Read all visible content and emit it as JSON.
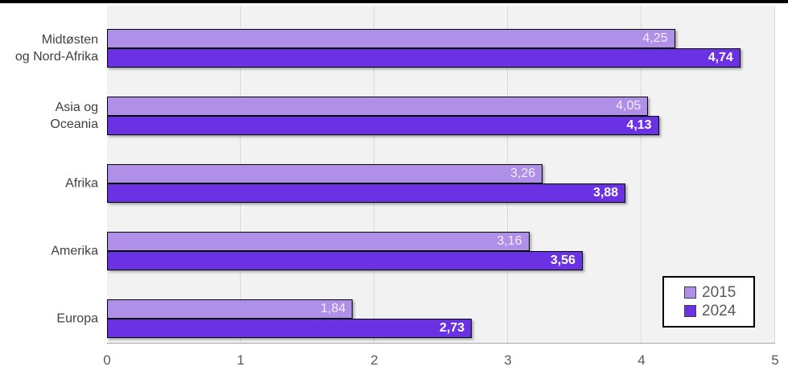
{
  "chart_data": {
    "type": "bar",
    "orientation": "horizontal",
    "title": "",
    "xlabel": "",
    "ylabel": "",
    "categories": [
      "Midtøsten og Nord-Afrika",
      "Asia og Oceania",
      "Afrika",
      "Amerika",
      "Europa"
    ],
    "category_display_lines": [
      [
        "Midtøsten",
        "og Nord-Afrika"
      ],
      [
        "Asia og",
        "Oceania"
      ],
      [
        "Afrika"
      ],
      [
        "Amerika"
      ],
      [
        "Europa"
      ]
    ],
    "series": [
      {
        "name": "2015",
        "color": "#b08fe8",
        "value_label_color": "#f2eef9",
        "value_label_bold": false,
        "values": [
          4.25,
          4.05,
          3.26,
          3.16,
          1.84
        ],
        "value_labels": [
          "4,25",
          "4,05",
          "3,26",
          "3,16",
          "1,84"
        ]
      },
      {
        "name": "2024",
        "color": "#6a32e3",
        "value_label_color": "#ffffff",
        "value_label_bold": true,
        "values": [
          4.74,
          4.13,
          3.88,
          3.56,
          2.73
        ],
        "value_labels": [
          "4,74",
          "4,13",
          "3,88",
          "3,56",
          "2,73"
        ]
      }
    ],
    "xlim": [
      0,
      5
    ],
    "x_ticks": [
      "0",
      "1",
      "2",
      "3",
      "4",
      "5"
    ],
    "grid": true,
    "legend_position": "bottom-right"
  },
  "colors": {
    "plot_background": "#f2f2f2",
    "gridline": "#d9d9d9",
    "axis_tick_text": "#595959",
    "category_text": "#404040",
    "legend_text": "#595959",
    "bar_border": "#000000",
    "figure_top_border": "#000000"
  }
}
